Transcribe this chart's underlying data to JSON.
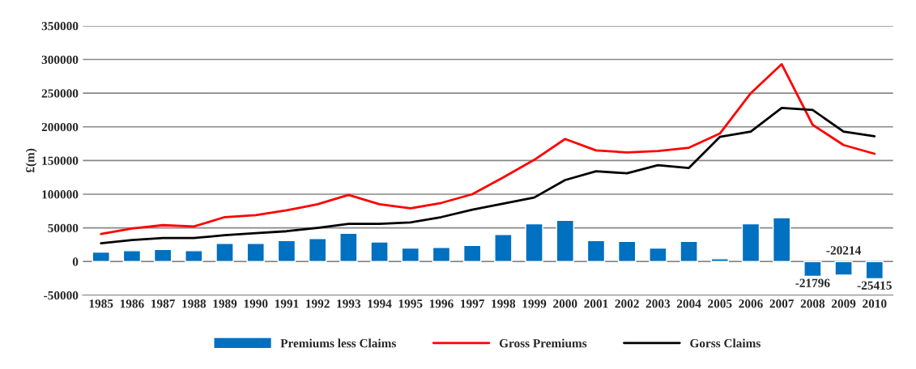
{
  "chart_data": {
    "type": "bar",
    "ylabel": "£(m)",
    "categories": [
      "1985",
      "1986",
      "1987",
      "1988",
      "1989",
      "1990",
      "1991",
      "1992",
      "1993",
      "1994",
      "1995",
      "1996",
      "1997",
      "1998",
      "1999",
      "2000",
      "2001",
      "2002",
      "2003",
      "2004",
      "2005",
      "2006",
      "2007",
      "2008",
      "2009",
      "2010"
    ],
    "series": [
      {
        "name": "Premiums less Claims",
        "color": "#0070c0",
        "values": [
          14000,
          16000,
          18000,
          16000,
          27000,
          27000,
          31000,
          34000,
          42000,
          29000,
          20000,
          21000,
          24000,
          40000,
          56000,
          61000,
          31000,
          30000,
          20000,
          30000,
          4000,
          56000,
          65000,
          -21796,
          -20214,
          -25415
        ],
        "value_labels": [
          null,
          null,
          null,
          null,
          null,
          null,
          null,
          null,
          null,
          null,
          null,
          null,
          null,
          null,
          null,
          null,
          null,
          null,
          null,
          null,
          null,
          null,
          null,
          "-21796",
          "-20214",
          "-25415"
        ]
      },
      {
        "name": "Gross Premiums",
        "type": "line",
        "color": "#ff0000",
        "values": [
          41000,
          49000,
          54000,
          52000,
          66000,
          69000,
          76000,
          85000,
          99000,
          85000,
          79000,
          87000,
          100000,
          125000,
          151000,
          182000,
          165000,
          162000,
          164000,
          169000,
          190000,
          250000,
          293000,
          203000,
          173000,
          160000
        ]
      },
      {
        "name": "Gorss Claims",
        "type": "line",
        "color": "#000000",
        "values": [
          27000,
          32000,
          35000,
          35000,
          39000,
          42000,
          45000,
          50000,
          56000,
          56000,
          58000,
          66000,
          77000,
          86000,
          95000,
          121000,
          134000,
          131000,
          143000,
          139000,
          185000,
          193000,
          228000,
          225000,
          193000,
          186000
        ]
      }
    ],
    "ylim": [
      -50000,
      350000
    ],
    "yticks": [
      -50000,
      0,
      50000,
      100000,
      150000,
      200000,
      250000,
      300000,
      350000
    ],
    "grid": "y",
    "legend": "bottom",
    "marker": "none",
    "line_style": "solid"
  }
}
